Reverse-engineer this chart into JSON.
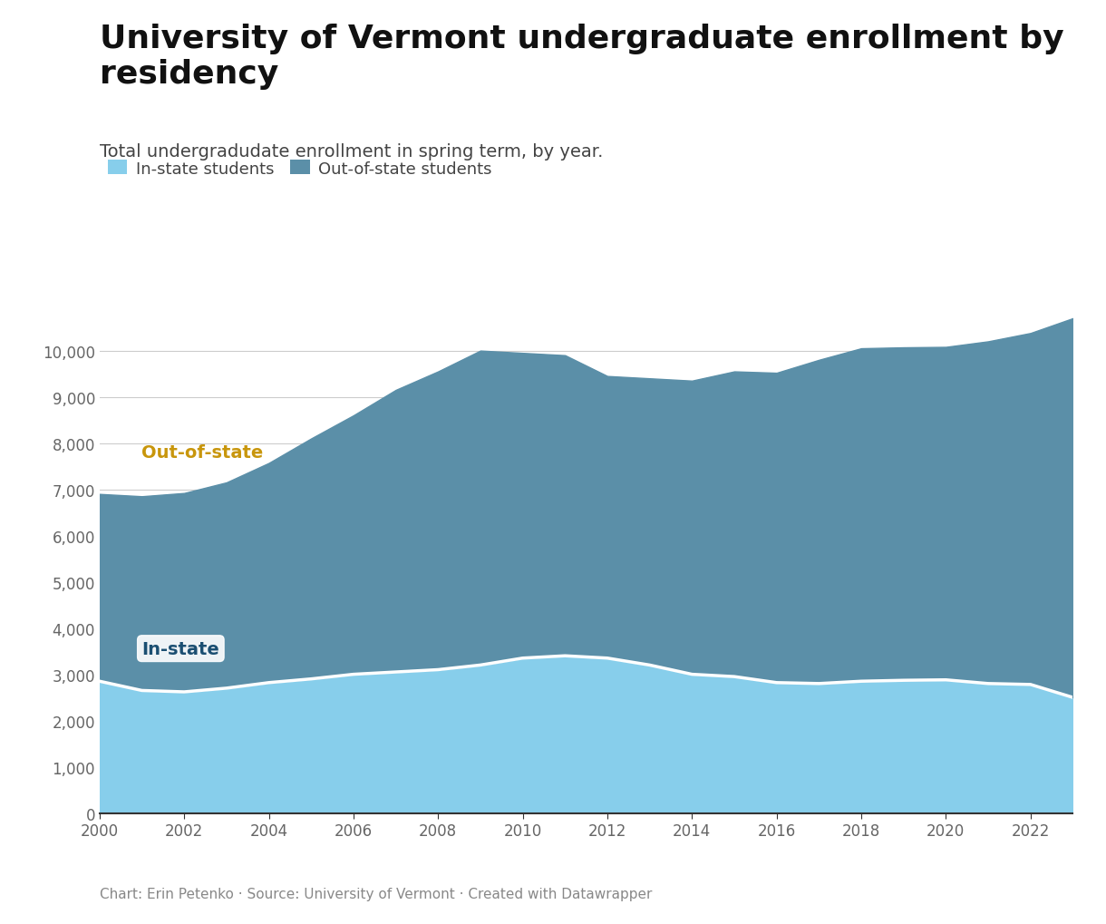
{
  "title": "University of Vermont undergraduate enrollment by\nresidency",
  "subtitle": "Total undergradudate enrollment in spring term, by year.",
  "footer": "Chart: Erin Petenko · Source: University of Vermont · Created with Datawrapper",
  "years": [
    2000,
    2001,
    2002,
    2003,
    2004,
    2005,
    2006,
    2007,
    2008,
    2009,
    2010,
    2011,
    2012,
    2013,
    2014,
    2015,
    2016,
    2017,
    2018,
    2019,
    2020,
    2021,
    2022,
    2023
  ],
  "in_state": [
    2850,
    2650,
    2620,
    2700,
    2820,
    2900,
    3000,
    3050,
    3100,
    3200,
    3350,
    3400,
    3350,
    3200,
    3000,
    2950,
    2820,
    2800,
    2850,
    2870,
    2880,
    2800,
    2780,
    2500
  ],
  "out_of_state": [
    4050,
    4200,
    4300,
    4450,
    4750,
    5200,
    5600,
    6100,
    6450,
    6800,
    6600,
    6500,
    6100,
    6200,
    6350,
    6600,
    6700,
    7000,
    7200,
    7200,
    7200,
    7400,
    7600,
    8200
  ],
  "in_state_color": "#87CEEB",
  "out_of_state_color": "#5B8FA8",
  "boundary_line_color": "#ffffff",
  "outofstate_label_color": "#c8960c",
  "instate_label_color": "#1B4F72",
  "legend_instate_color": "#87CEEB",
  "legend_outofstate_color": "#5B8FA8",
  "ylim": [
    0,
    11000
  ],
  "yticks": [
    0,
    1000,
    2000,
    3000,
    4000,
    5000,
    6000,
    7000,
    8000,
    9000,
    10000
  ],
  "xticks": [
    2000,
    2002,
    2004,
    2006,
    2008,
    2010,
    2012,
    2014,
    2016,
    2018,
    2020,
    2022
  ],
  "background_color": "#ffffff",
  "grid_color": "#cccccc",
  "title_fontsize": 26,
  "subtitle_fontsize": 14,
  "footer_fontsize": 11,
  "tick_fontsize": 12,
  "legend_fontsize": 13,
  "annotation_fontsize": 14
}
